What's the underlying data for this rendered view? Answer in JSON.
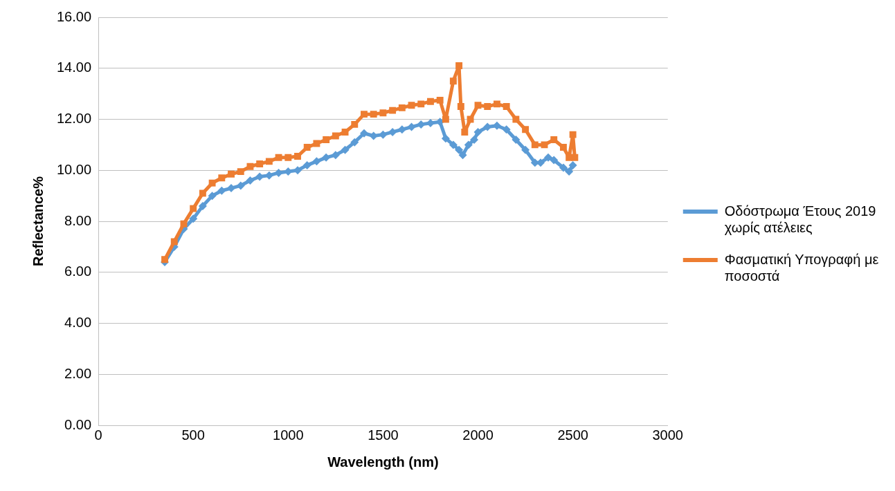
{
  "chart_data": {
    "type": "line",
    "xlabel": "Wavelength (nm)",
    "ylabel": "Reflectance%",
    "xlim": [
      0,
      3000
    ],
    "xticks": [
      0,
      500,
      1000,
      1500,
      2000,
      2500,
      3000
    ],
    "ylim": [
      0,
      16
    ],
    "yticks": [
      {
        "value": 0,
        "label": "0.00"
      },
      {
        "value": 2,
        "label": "2.00"
      },
      {
        "value": 4,
        "label": "4.00"
      },
      {
        "value": 6,
        "label": "6.00"
      },
      {
        "value": 8,
        "label": "8.00"
      },
      {
        "value": 10,
        "label": "10.00"
      },
      {
        "value": 12,
        "label": "12.00"
      },
      {
        "value": 14,
        "label": "14.00"
      },
      {
        "value": 16,
        "label": "16.00"
      }
    ],
    "grid": "y",
    "legend": "right",
    "series": [
      {
        "name": "Οδόστρωμα Έτους 2019 χωρίς ατέλειες",
        "color": "#5b9bd5",
        "marker": "diamond",
        "x": [
          350,
          400,
          450,
          500,
          550,
          600,
          650,
          700,
          750,
          800,
          850,
          900,
          950,
          1000,
          1050,
          1100,
          1150,
          1200,
          1250,
          1300,
          1350,
          1400,
          1450,
          1500,
          1550,
          1600,
          1650,
          1700,
          1750,
          1800,
          1830,
          1870,
          1900,
          1920,
          1950,
          1980,
          2000,
          2050,
          2100,
          2150,
          2200,
          2250,
          2300,
          2330,
          2370,
          2400,
          2450,
          2480,
          2500
        ],
        "values": [
          6.4,
          7.0,
          7.7,
          8.1,
          8.6,
          9.0,
          9.2,
          9.3,
          9.4,
          9.6,
          9.75,
          9.8,
          9.9,
          9.95,
          10.0,
          10.2,
          10.35,
          10.5,
          10.6,
          10.8,
          11.1,
          11.45,
          11.35,
          11.4,
          11.5,
          11.6,
          11.7,
          11.8,
          11.85,
          11.9,
          11.25,
          11.0,
          10.8,
          10.6,
          11.0,
          11.2,
          11.5,
          11.7,
          11.75,
          11.6,
          11.2,
          10.8,
          10.3,
          10.3,
          10.5,
          10.4,
          10.1,
          9.95,
          10.2
        ]
      },
      {
        "name": "Φασματική Υπογραφή με ποσοστά",
        "color": "#ed7d31",
        "marker": "square",
        "x": [
          350,
          400,
          450,
          500,
          550,
          600,
          650,
          700,
          750,
          800,
          850,
          900,
          950,
          1000,
          1050,
          1100,
          1150,
          1200,
          1250,
          1300,
          1350,
          1400,
          1450,
          1500,
          1550,
          1600,
          1650,
          1700,
          1750,
          1800,
          1830,
          1870,
          1900,
          1910,
          1930,
          1960,
          2000,
          2050,
          2100,
          2150,
          2200,
          2250,
          2300,
          2350,
          2400,
          2450,
          2480,
          2500,
          2510
        ],
        "values": [
          6.5,
          7.2,
          7.9,
          8.5,
          9.1,
          9.5,
          9.7,
          9.85,
          9.95,
          10.15,
          10.25,
          10.35,
          10.5,
          10.5,
          10.55,
          10.9,
          11.05,
          11.2,
          11.35,
          11.5,
          11.8,
          12.2,
          12.2,
          12.25,
          12.35,
          12.45,
          12.55,
          12.6,
          12.7,
          12.75,
          12.0,
          13.5,
          14.1,
          12.5,
          11.5,
          12.0,
          12.55,
          12.5,
          12.6,
          12.5,
          12.0,
          11.6,
          11.0,
          11.0,
          11.2,
          10.9,
          10.5,
          11.4,
          10.5
        ]
      }
    ]
  }
}
